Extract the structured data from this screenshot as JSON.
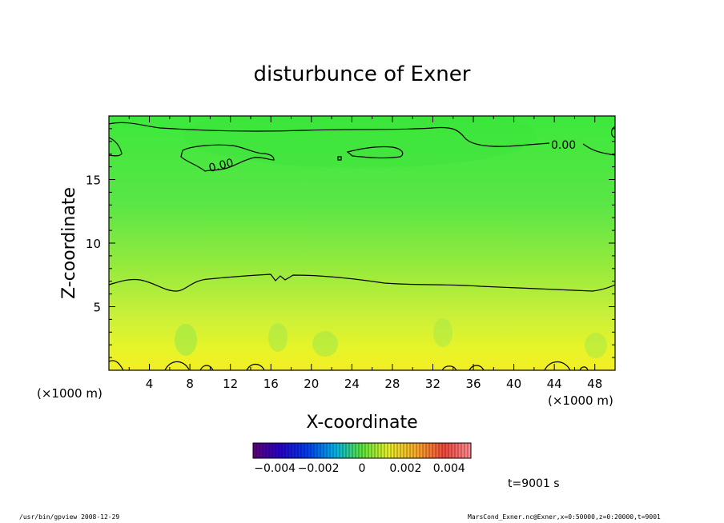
{
  "chart_data": {
    "type": "heatmap",
    "title": "disturbunce of Exner",
    "xlabel": "X-coordinate",
    "ylabel": "Z-coordinate",
    "x_unit": "(×1000 m)",
    "x_unit_right": "(×1000 m)",
    "x_ticks": [
      4,
      8,
      12,
      16,
      20,
      24,
      28,
      32,
      36,
      40,
      44,
      48
    ],
    "y_ticks": [
      5,
      10,
      15
    ],
    "xlim": [
      0,
      50
    ],
    "ylim": [
      0,
      20
    ],
    "grid": false,
    "colorbar": {
      "range": [
        -0.005,
        0.005
      ],
      "tick_values": [
        -0.004,
        -0.002,
        0,
        0.002,
        0.004
      ],
      "tick_labels": [
        "−0.004",
        "−0.002",
        "0",
        "0.002",
        "0.004"
      ]
    },
    "field_description_by_height": [
      {
        "z": 0.5,
        "value": 0.0008
      },
      {
        "z": 3,
        "value": 0.0006
      },
      {
        "z": 7,
        "value": 0.0004
      },
      {
        "z": 12,
        "value": 0.0002
      },
      {
        "z": 17,
        "value": 0.0
      }
    ],
    "contour_labels": [
      "0.00",
      "0.00"
    ],
    "time_label": "t=9001 s"
  },
  "footer": {
    "left": "/usr/bin/gpview   2008-12-29",
    "right": "MarsCond_Exner.nc@Exner,x=0:50000,z=0:20000,t=9001"
  }
}
